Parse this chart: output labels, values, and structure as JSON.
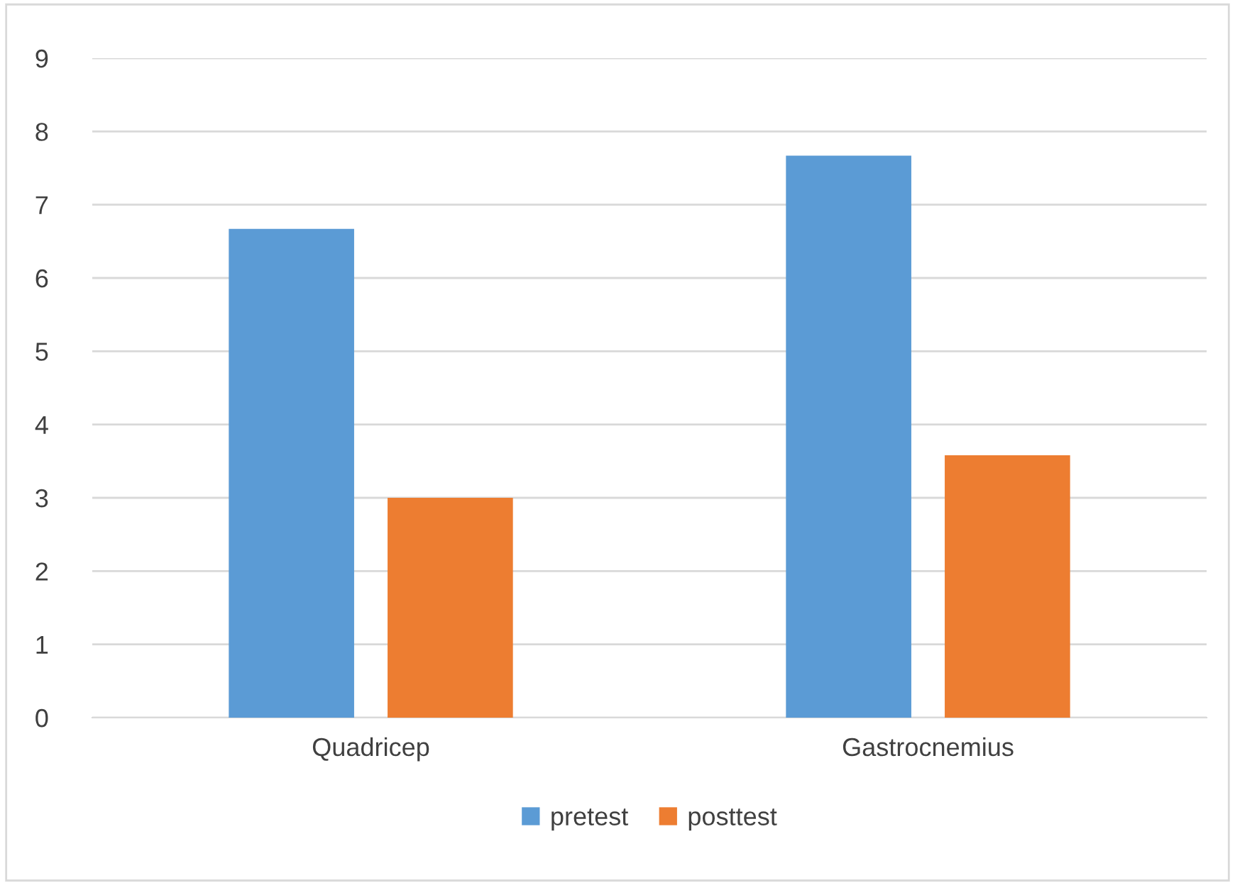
{
  "chart_data": {
    "type": "bar",
    "categories": [
      "Quadricep",
      "Gastrocnemius"
    ],
    "series": [
      {
        "name": "pretest",
        "color": "#5b9bd5",
        "values": [
          6.67,
          7.67
        ]
      },
      {
        "name": "posttest",
        "color": "#ed7d31",
        "values": [
          3.0,
          3.58
        ]
      }
    ],
    "ylim": [
      0,
      9
    ],
    "yticks": [
      0,
      1,
      2,
      3,
      4,
      5,
      6,
      7,
      8,
      9
    ],
    "grid": "y",
    "legend": "bottom"
  }
}
